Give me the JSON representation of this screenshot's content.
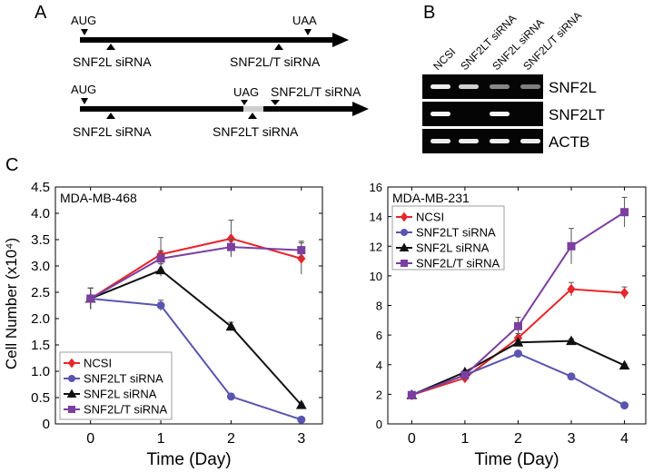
{
  "panels": {
    "a": "A",
    "b": "B",
    "c": "C"
  },
  "panel_a": {
    "transcript1": {
      "start_codon": "AUG",
      "stop_codon": "UAA",
      "sirna_left": "SNF2L siRNA",
      "sirna_right": "SNF2L/T siRNA"
    },
    "transcript2": {
      "start_codon": "AUG",
      "stop_codon": "UAG",
      "sirna_left": "SNF2L siRNA",
      "sirna_mid": "SNF2LT siRNA",
      "sirna_right": "SNF2L/T siRNA"
    }
  },
  "panel_b": {
    "lane_labels": [
      "NCSI",
      "SNF2LT siRNA",
      "SNF2L siRNA",
      "SNF2L/T siRNA"
    ],
    "rows": [
      {
        "label": "SNF2L",
        "intensity": [
          0.9,
          0.75,
          0.35,
          0.3
        ]
      },
      {
        "label": "SNF2LT",
        "intensity": [
          0.95,
          0,
          0.95,
          0
        ]
      },
      {
        "label": "ACTB",
        "intensity": [
          0.9,
          0.9,
          0.9,
          0.9
        ]
      }
    ]
  },
  "colors": {
    "NCSI": "#e8262b",
    "SNF2LT siRNA": "#5a55b0",
    "SNF2L siRNA": "#111111",
    "SNF2L/T siRNA": "#7b3fa0"
  },
  "chart_data": [
    {
      "type": "line",
      "title": "MDA-MB-468",
      "xlabel": "Time (Day)",
      "ylabel": "Cell Number (x10⁴)",
      "x": [
        0,
        1,
        2,
        3
      ],
      "xticks": [
        "0",
        "1",
        "2",
        "3"
      ],
      "xlim": [
        -0.5,
        3.3
      ],
      "ylim": [
        0,
        4.5
      ],
      "yticks": [
        "0",
        "0.5",
        "1.0",
        "1.5",
        "2.0",
        "2.5",
        "3.0",
        "3.5",
        "4.0",
        "4.5"
      ],
      "legend_position": "bottom-left",
      "series": [
        {
          "name": "NCSI",
          "marker": "diamond",
          "values": [
            2.38,
            3.22,
            3.52,
            3.14
          ],
          "errors": [
            0.2,
            0.32,
            0.35,
            0.3
          ]
        },
        {
          "name": "SNF2LT siRNA",
          "marker": "circle",
          "values": [
            2.38,
            2.25,
            0.52,
            0.08
          ],
          "errors": [
            0.2,
            0.1,
            0.03,
            0.03
          ]
        },
        {
          "name": "SNF2L siRNA",
          "marker": "triangle",
          "values": [
            2.38,
            2.92,
            1.85,
            0.36
          ],
          "errors": [
            0.2,
            0.12,
            0.08,
            0.03
          ]
        },
        {
          "name": "SNF2L/T siRNA",
          "marker": "square",
          "values": [
            2.38,
            3.14,
            3.36,
            3.3
          ],
          "errors": [
            0.2,
            0.15,
            0.15,
            0.17
          ]
        }
      ]
    },
    {
      "type": "line",
      "title": "MDA-MB-231",
      "xlabel": "Time (Day)",
      "ylabel": "",
      "x": [
        0,
        1,
        2,
        3,
        4
      ],
      "xticks": [
        "0",
        "1",
        "2",
        "3",
        "4"
      ],
      "xlim": [
        -0.45,
        4.4
      ],
      "ylim": [
        0,
        16
      ],
      "yticks": [
        "0",
        "2",
        "4",
        "6",
        "8",
        "10",
        "12",
        "14",
        "16"
      ],
      "legend_position": "top-left",
      "series": [
        {
          "name": "NCSI",
          "marker": "diamond",
          "values": [
            1.95,
            3.1,
            5.8,
            9.1,
            8.85
          ],
          "errors": [
            0.1,
            0.15,
            0.3,
            0.45,
            0.4
          ]
        },
        {
          "name": "SNF2LT siRNA",
          "marker": "circle",
          "values": [
            1.95,
            3.3,
            4.75,
            3.2,
            1.25
          ],
          "errors": [
            0.1,
            0.1,
            0.15,
            0.1,
            0.1
          ]
        },
        {
          "name": "SNF2L siRNA",
          "marker": "triangle",
          "values": [
            1.95,
            3.5,
            5.5,
            5.6,
            3.95
          ],
          "errors": [
            0.1,
            0.1,
            0.15,
            0.15,
            0.1
          ]
        },
        {
          "name": "SNF2L/T siRNA",
          "marker": "square",
          "values": [
            1.95,
            3.3,
            6.6,
            12.0,
            14.3
          ],
          "errors": [
            0.1,
            0.15,
            0.6,
            1.2,
            1.0
          ]
        }
      ]
    }
  ]
}
